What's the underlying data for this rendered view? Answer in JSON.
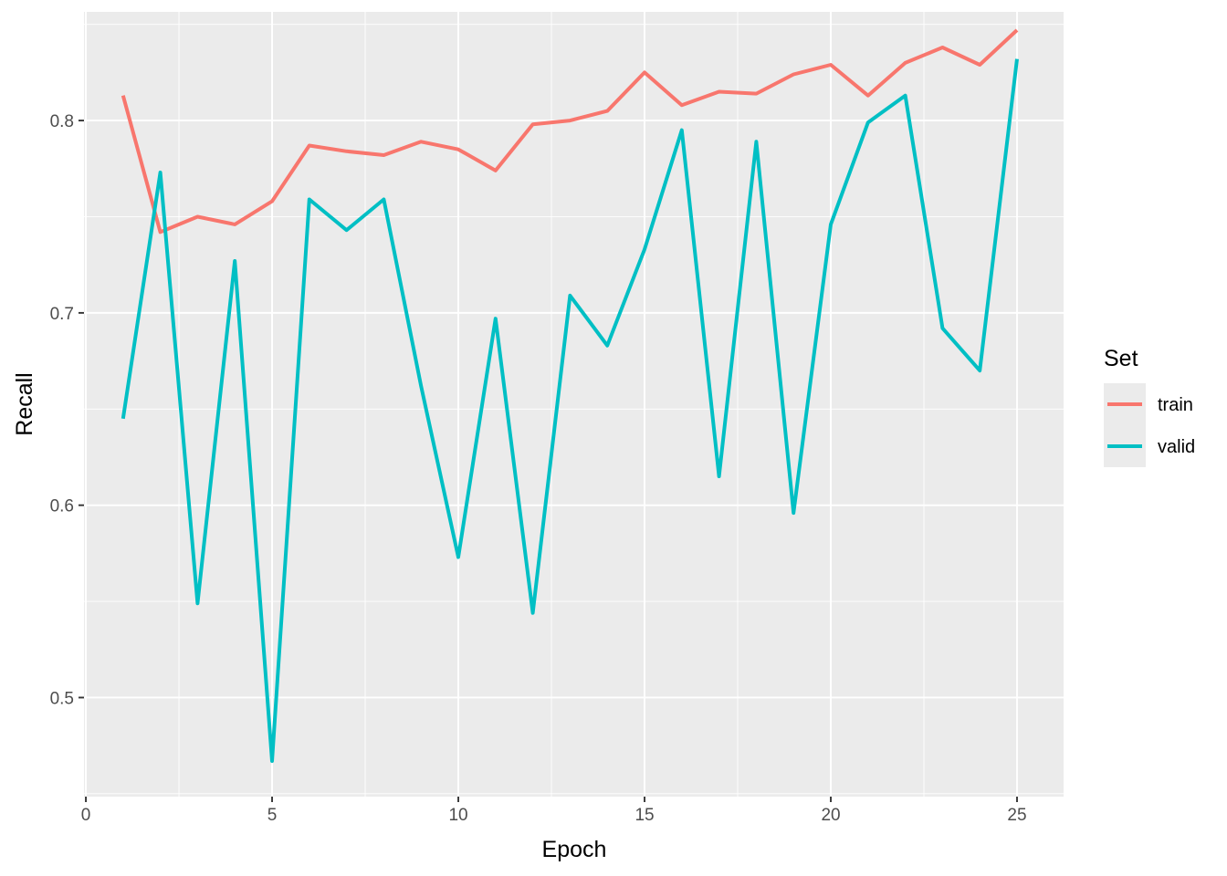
{
  "chart_data": {
    "type": "line",
    "xlabel": "Epoch",
    "ylabel": "Recall",
    "xlim": [
      -0.05,
      26.25
    ],
    "ylim": [
      0.4485,
      0.8565
    ],
    "x_ticks": [
      0,
      5,
      10,
      15,
      20,
      25
    ],
    "y_ticks": [
      0.5,
      0.6,
      0.7,
      0.8
    ],
    "y_tick_labels": [
      "0.5",
      "0.6",
      "0.7",
      "0.8"
    ],
    "grid": true,
    "legend": {
      "title": "Set",
      "placement": "right"
    },
    "x": [
      1,
      2,
      3,
      4,
      5,
      6,
      7,
      8,
      9,
      10,
      11,
      12,
      13,
      14,
      15,
      16,
      17,
      18,
      19,
      20,
      21,
      22,
      23,
      24,
      25
    ],
    "series": [
      {
        "name": "train",
        "color": "#F8766D",
        "values": [
          0.813,
          0.742,
          0.75,
          0.746,
          0.758,
          0.787,
          0.784,
          0.782,
          0.789,
          0.785,
          0.774,
          0.798,
          0.8,
          0.805,
          0.825,
          0.808,
          0.815,
          0.814,
          0.824,
          0.829,
          0.813,
          0.83,
          0.838,
          0.829,
          0.847
        ]
      },
      {
        "name": "valid",
        "color": "#00BFC4",
        "values": [
          0.645,
          0.773,
          0.549,
          0.727,
          0.467,
          0.759,
          0.743,
          0.759,
          0.662,
          0.573,
          0.697,
          0.544,
          0.709,
          0.683,
          0.733,
          0.795,
          0.615,
          0.789,
          0.596,
          0.746,
          0.799,
          0.813,
          0.692,
          0.67,
          0.832
        ]
      }
    ]
  }
}
